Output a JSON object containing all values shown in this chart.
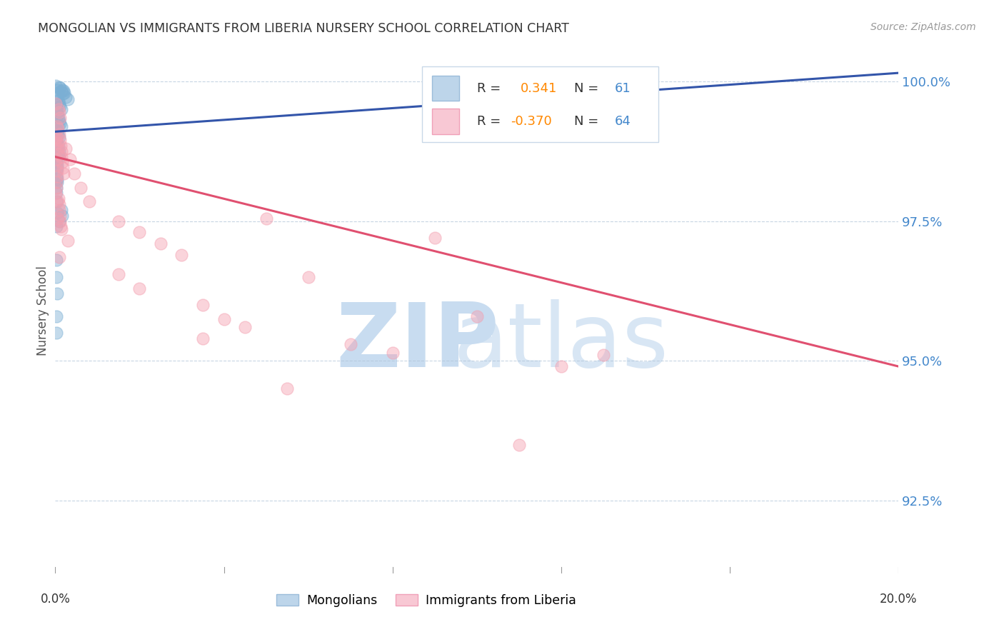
{
  "title": "MONGOLIAN VS IMMIGRANTS FROM LIBERIA NURSERY SCHOOL CORRELATION CHART",
  "source": "Source: ZipAtlas.com",
  "ylabel": "Nursery School",
  "yticks": [
    92.5,
    95.0,
    97.5,
    100.0
  ],
  "ytick_labels": [
    "92.5%",
    "95.0%",
    "97.5%",
    "100.0%"
  ],
  "xmin": 0.0,
  "xmax": 20.0,
  "ymin": 91.2,
  "ymax": 100.6,
  "blue_color": "#7BAFD4",
  "pink_color": "#F4A0B0",
  "blue_line_color": "#3355AA",
  "pink_line_color": "#E05070",
  "ytick_color": "#4488CC",
  "title_color": "#333333",
  "blue_scatter": [
    [
      0.05,
      99.85
    ],
    [
      0.07,
      99.8
    ],
    [
      0.1,
      99.9
    ],
    [
      0.12,
      99.88
    ],
    [
      0.14,
      99.82
    ],
    [
      0.16,
      99.85
    ],
    [
      0.18,
      99.78
    ],
    [
      0.2,
      99.83
    ],
    [
      0.22,
      99.8
    ],
    [
      0.05,
      99.7
    ],
    [
      0.08,
      99.65
    ],
    [
      0.1,
      99.6
    ],
    [
      0.12,
      99.55
    ],
    [
      0.15,
      99.5
    ],
    [
      0.04,
      99.45
    ],
    [
      0.06,
      99.4
    ],
    [
      0.08,
      99.35
    ],
    [
      0.1,
      99.3
    ],
    [
      0.12,
      99.25
    ],
    [
      0.15,
      99.2
    ],
    [
      0.03,
      99.15
    ],
    [
      0.05,
      99.1
    ],
    [
      0.07,
      99.05
    ],
    [
      0.09,
      99.0
    ],
    [
      0.03,
      98.9
    ],
    [
      0.05,
      98.8
    ],
    [
      0.07,
      98.7
    ],
    [
      0.02,
      98.6
    ],
    [
      0.04,
      98.5
    ],
    [
      0.03,
      98.4
    ],
    [
      0.02,
      98.3
    ],
    [
      0.04,
      98.2
    ],
    [
      0.02,
      98.1
    ],
    [
      0.03,
      98.0
    ],
    [
      0.15,
      97.7
    ],
    [
      0.16,
      97.6
    ],
    [
      0.1,
      97.5
    ],
    [
      0.02,
      97.4
    ],
    [
      0.02,
      96.8
    ],
    [
      0.025,
      96.5
    ],
    [
      0.04,
      96.2
    ],
    [
      0.02,
      95.8
    ],
    [
      0.025,
      95.5
    ],
    [
      0.02,
      99.6
    ],
    [
      0.035,
      99.5
    ],
    [
      0.06,
      99.2
    ],
    [
      0.08,
      98.85
    ],
    [
      0.09,
      98.75
    ],
    [
      0.1,
      98.65
    ],
    [
      0.04,
      98.45
    ],
    [
      0.05,
      98.25
    ],
    [
      0.03,
      97.85
    ],
    [
      0.04,
      97.65
    ],
    [
      0.25,
      99.72
    ],
    [
      0.3,
      99.68
    ],
    [
      0.02,
      98.95
    ],
    [
      0.03,
      98.55
    ],
    [
      0.01,
      99.92
    ],
    [
      0.01,
      99.5
    ],
    [
      0.01,
      98.8
    ],
    [
      0.01,
      98.2
    ]
  ],
  "pink_scatter": [
    [
      0.08,
      99.5
    ],
    [
      0.1,
      99.45
    ],
    [
      0.12,
      99.35
    ],
    [
      0.05,
      99.2
    ],
    [
      0.07,
      99.15
    ],
    [
      0.09,
      99.05
    ],
    [
      0.11,
      98.95
    ],
    [
      0.13,
      98.85
    ],
    [
      0.14,
      98.75
    ],
    [
      0.15,
      98.65
    ],
    [
      0.16,
      98.55
    ],
    [
      0.18,
      98.45
    ],
    [
      0.2,
      98.35
    ],
    [
      0.03,
      99.0
    ],
    [
      0.04,
      98.9
    ],
    [
      0.06,
      98.8
    ],
    [
      0.08,
      98.7
    ],
    [
      0.02,
      98.6
    ],
    [
      0.03,
      98.5
    ],
    [
      0.04,
      98.4
    ],
    [
      0.05,
      98.3
    ],
    [
      0.02,
      98.2
    ],
    [
      0.03,
      98.1
    ],
    [
      0.08,
      97.9
    ],
    [
      0.09,
      97.8
    ],
    [
      0.1,
      97.7
    ],
    [
      0.11,
      97.6
    ],
    [
      0.12,
      97.5
    ],
    [
      0.13,
      97.4
    ],
    [
      0.01,
      99.6
    ],
    [
      0.01,
      98.95
    ],
    [
      0.01,
      98.0
    ],
    [
      0.25,
      98.8
    ],
    [
      0.35,
      98.6
    ],
    [
      0.45,
      98.35
    ],
    [
      0.6,
      98.1
    ],
    [
      0.8,
      97.85
    ],
    [
      1.5,
      97.5
    ],
    [
      2.0,
      97.3
    ],
    [
      2.5,
      97.1
    ],
    [
      3.0,
      96.9
    ],
    [
      3.5,
      96.0
    ],
    [
      4.0,
      95.75
    ],
    [
      4.5,
      95.6
    ],
    [
      5.0,
      97.55
    ],
    [
      5.5,
      94.5
    ],
    [
      6.0,
      96.5
    ],
    [
      7.0,
      95.3
    ],
    [
      8.0,
      95.15
    ],
    [
      9.0,
      97.2
    ],
    [
      10.0,
      95.8
    ],
    [
      11.0,
      93.5
    ],
    [
      12.0,
      94.9
    ],
    [
      0.06,
      97.85
    ],
    [
      0.15,
      97.35
    ],
    [
      0.3,
      97.15
    ],
    [
      0.1,
      96.85
    ],
    [
      2.0,
      96.3
    ],
    [
      3.5,
      95.4
    ],
    [
      1.5,
      96.55
    ],
    [
      13.0,
      95.1
    ],
    [
      0.07,
      97.55
    ]
  ],
  "blue_line_x": [
    0.0,
    20.0
  ],
  "blue_line_y": [
    99.1,
    100.15
  ],
  "pink_line_x": [
    0.0,
    20.0
  ],
  "pink_line_y": [
    98.65,
    94.9
  ]
}
